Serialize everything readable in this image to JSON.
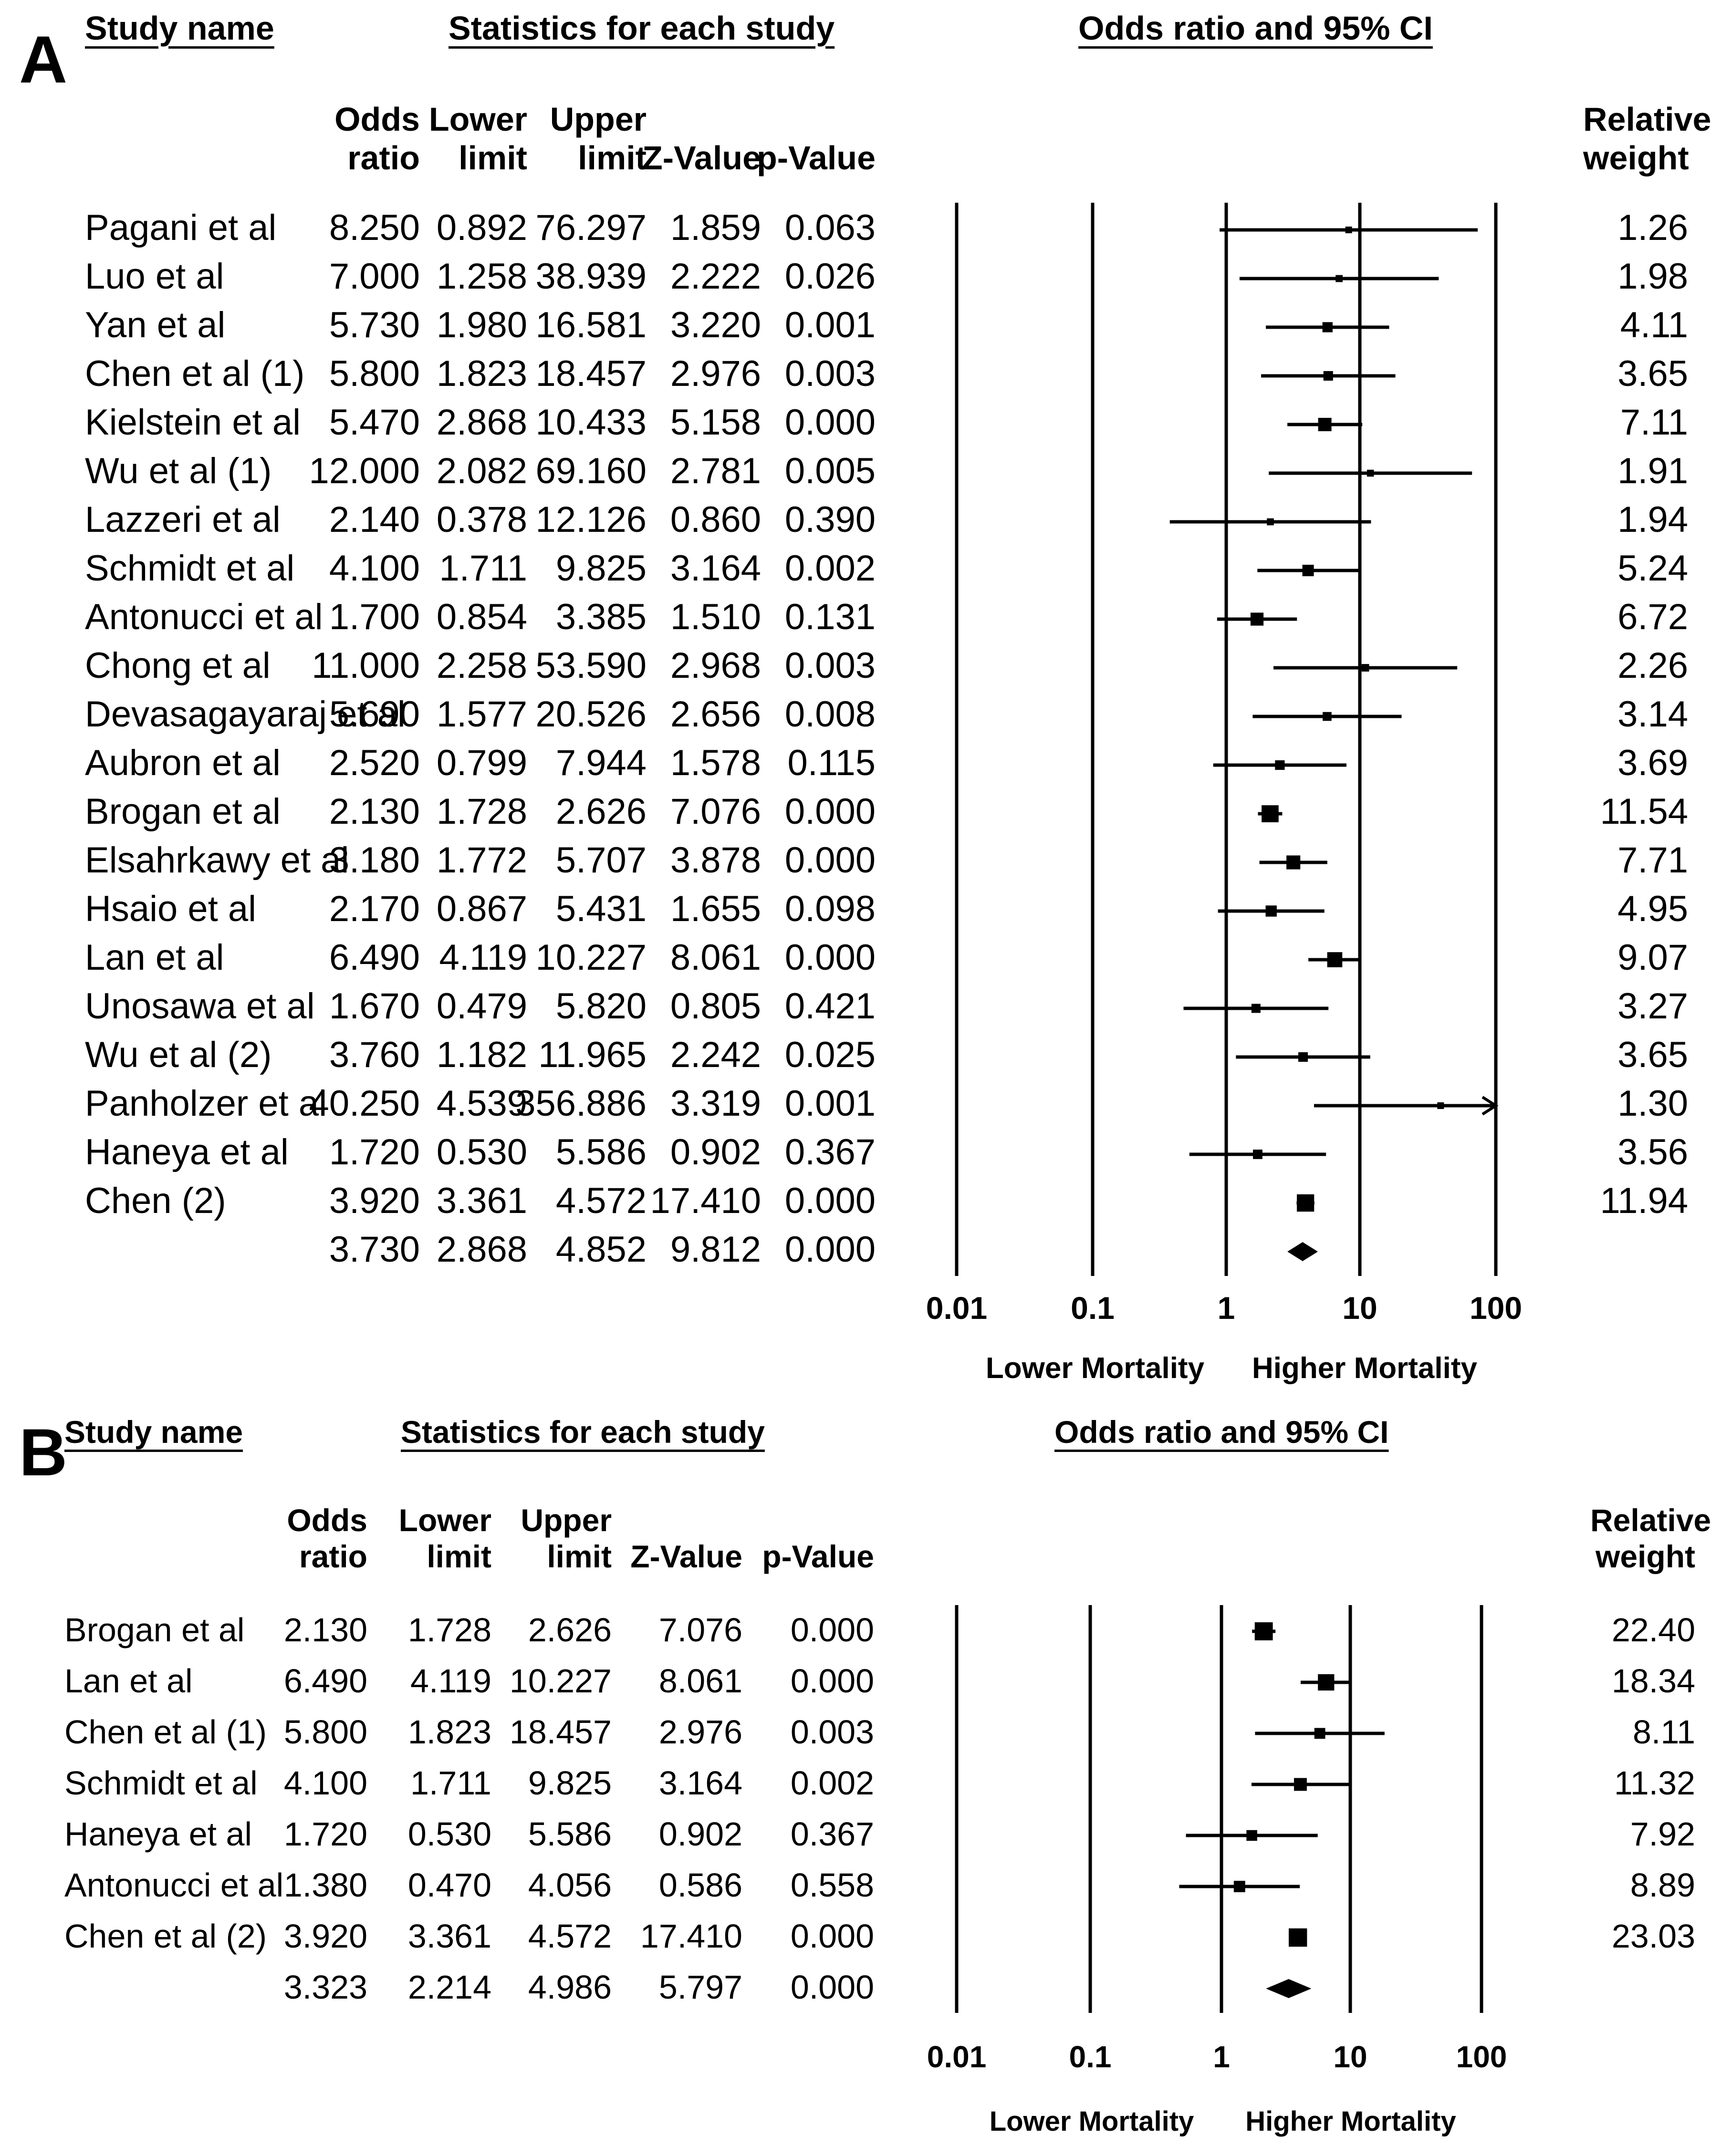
{
  "chart_data": [
    {
      "panel": "A",
      "type": "forest",
      "headers": {
        "study": "Study name",
        "stats": "Statistics for each study",
        "plot": "Odds ratio and 95% CI",
        "odds_ratio": "Odds ratio",
        "lower_limit": "Lower limit",
        "upper_limit": "Upper limit",
        "z_value": "Z-Value",
        "p_value": "p-Value",
        "weight": "Relative weight"
      },
      "x_axis": {
        "scale": "log",
        "ticks": [
          "0.01",
          "0.1",
          "1",
          "10",
          "100"
        ],
        "range": [
          0.01,
          100
        ]
      },
      "labels": {
        "left": "Lower Mortality",
        "right": "Higher Mortality"
      },
      "rows": [
        {
          "study": "Pagani et al",
          "or": "8.250",
          "lower": "0.892",
          "upper": "76.297",
          "z": "1.859",
          "p": "0.063",
          "weight": "1.26"
        },
        {
          "study": "Luo et al",
          "or": "7.000",
          "lower": "1.258",
          "upper": "38.939",
          "z": "2.222",
          "p": "0.026",
          "weight": "1.98"
        },
        {
          "study": "Yan et al",
          "or": "5.730",
          "lower": "1.980",
          "upper": "16.581",
          "z": "3.220",
          "p": "0.001",
          "weight": "4.11"
        },
        {
          "study": "Chen et al (1)",
          "or": "5.800",
          "lower": "1.823",
          "upper": "18.457",
          "z": "2.976",
          "p": "0.003",
          "weight": "3.65"
        },
        {
          "study": "Kielstein et al",
          "or": "5.470",
          "lower": "2.868",
          "upper": "10.433",
          "z": "5.158",
          "p": "0.000",
          "weight": "7.11"
        },
        {
          "study": "Wu et al (1)",
          "or": "12.000",
          "lower": "2.082",
          "upper": "69.160",
          "z": "2.781",
          "p": "0.005",
          "weight": "1.91"
        },
        {
          "study": "Lazzeri et al",
          "or": "2.140",
          "lower": "0.378",
          "upper": "12.126",
          "z": "0.860",
          "p": "0.390",
          "weight": "1.94"
        },
        {
          "study": "Schmidt et al",
          "or": "4.100",
          "lower": "1.711",
          "upper": "9.825",
          "z": "3.164",
          "p": "0.002",
          "weight": "5.24"
        },
        {
          "study": "Antonucci et al",
          "or": "1.700",
          "lower": "0.854",
          "upper": "3.385",
          "z": "1.510",
          "p": "0.131",
          "weight": "6.72"
        },
        {
          "study": "Chong et al",
          "or": "11.000",
          "lower": "2.258",
          "upper": "53.590",
          "z": "2.968",
          "p": "0.003",
          "weight": "2.26"
        },
        {
          "study": "Devasagayaraj et al",
          "or": "5.690",
          "lower": "1.577",
          "upper": "20.526",
          "z": "2.656",
          "p": "0.008",
          "weight": "3.14"
        },
        {
          "study": "Aubron et al",
          "or": "2.520",
          "lower": "0.799",
          "upper": "7.944",
          "z": "1.578",
          "p": "0.115",
          "weight": "3.69"
        },
        {
          "study": "Brogan et al",
          "or": "2.130",
          "lower": "1.728",
          "upper": "2.626",
          "z": "7.076",
          "p": "0.000",
          "weight": "11.54"
        },
        {
          "study": "Elsahrkawy et al",
          "or": "3.180",
          "lower": "1.772",
          "upper": "5.707",
          "z": "3.878",
          "p": "0.000",
          "weight": "7.71"
        },
        {
          "study": "Hsaio et al",
          "or": "2.170",
          "lower": "0.867",
          "upper": "5.431",
          "z": "1.655",
          "p": "0.098",
          "weight": "4.95"
        },
        {
          "study": "Lan et al",
          "or": "6.490",
          "lower": "4.119",
          "upper": "10.227",
          "z": "8.061",
          "p": "0.000",
          "weight": "9.07"
        },
        {
          "study": "Unosawa et al",
          "or": "1.670",
          "lower": "0.479",
          "upper": "5.820",
          "z": "0.805",
          "p": "0.421",
          "weight": "3.27"
        },
        {
          "study": "Wu et al (2)",
          "or": "3.760",
          "lower": "1.182",
          "upper": "11.965",
          "z": "2.242",
          "p": "0.025",
          "weight": "3.65"
        },
        {
          "study": "Panholzer et al",
          "or": "40.250",
          "lower": "4.539",
          "upper": "356.886",
          "z": "3.319",
          "p": "0.001",
          "weight": "1.30"
        },
        {
          "study": "Haneya et al",
          "or": "1.720",
          "lower": "0.530",
          "upper": "5.586",
          "z": "0.902",
          "p": "0.367",
          "weight": "3.56"
        },
        {
          "study": "Chen (2)",
          "or": "3.920",
          "lower": "3.361",
          "upper": "4.572",
          "z": "17.410",
          "p": "0.000",
          "weight": "11.94"
        }
      ],
      "summary": {
        "or": "3.730",
        "lower": "2.868",
        "upper": "4.852",
        "z": "9.812",
        "p": "0.000"
      }
    },
    {
      "panel": "B",
      "type": "forest",
      "headers": {
        "study": "Study name",
        "stats": "Statistics for each study",
        "plot": "Odds ratio and 95% CI",
        "odds_ratio": "Odds ratio",
        "lower_limit": "Lower limit",
        "upper_limit": "Upper limit",
        "z_value": "Z-Value",
        "p_value": "p-Value",
        "weight": "Relative weight"
      },
      "x_axis": {
        "scale": "log",
        "ticks": [
          "0.01",
          "0.1",
          "1",
          "10",
          "100"
        ],
        "range": [
          0.01,
          100
        ]
      },
      "labels": {
        "left": "Lower Mortality",
        "right": "Higher Mortality"
      },
      "rows": [
        {
          "study": "Brogan et al",
          "or": "2.130",
          "lower": "1.728",
          "upper": "2.626",
          "z": "7.076",
          "p": "0.000",
          "weight": "22.40"
        },
        {
          "study": "Lan et al",
          "or": "6.490",
          "lower": "4.119",
          "upper": "10.227",
          "z": "8.061",
          "p": "0.000",
          "weight": "18.34"
        },
        {
          "study": "Chen et al (1)",
          "or": "5.800",
          "lower": "1.823",
          "upper": "18.457",
          "z": "2.976",
          "p": "0.003",
          "weight": "8.11"
        },
        {
          "study": "Schmidt et al",
          "or": "4.100",
          "lower": "1.711",
          "upper": "9.825",
          "z": "3.164",
          "p": "0.002",
          "weight": "11.32"
        },
        {
          "study": "Haneya et al",
          "or": "1.720",
          "lower": "0.530",
          "upper": "5.586",
          "z": "0.902",
          "p": "0.367",
          "weight": "7.92"
        },
        {
          "study": "Antonucci et al",
          "or": "1.380",
          "lower": "0.470",
          "upper": "4.056",
          "z": "0.586",
          "p": "0.558",
          "weight": "8.89"
        },
        {
          "study": "Chen et al (2)",
          "or": "3.920",
          "lower": "3.361",
          "upper": "4.572",
          "z": "17.410",
          "p": "0.000",
          "weight": "23.03"
        }
      ],
      "summary": {
        "or": "3.323",
        "lower": "2.214",
        "upper": "4.986",
        "z": "5.797",
        "p": "0.000"
      }
    }
  ],
  "panel_labels": [
    "A",
    "B"
  ]
}
